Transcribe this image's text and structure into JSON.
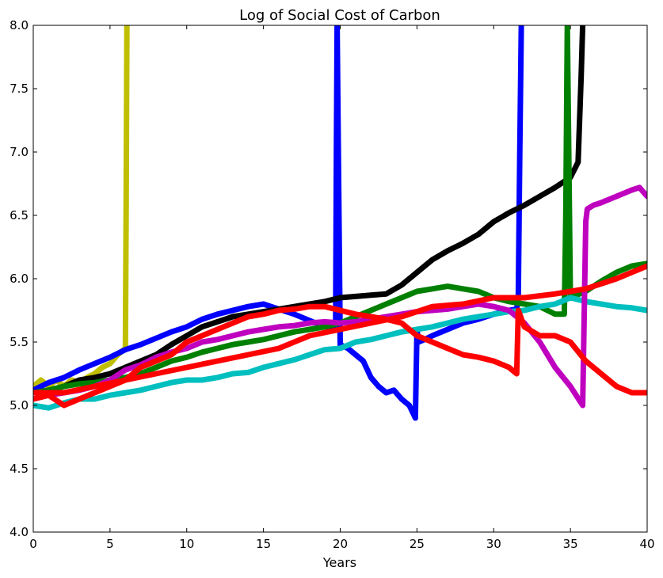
{
  "chart_data": {
    "type": "line",
    "title": "Log of Social Cost of Carbon",
    "xlabel": "Years",
    "ylabel": "",
    "xlim": [
      0,
      40
    ],
    "ylim": [
      4.0,
      8.0
    ],
    "grid": false,
    "legend": "none",
    "x_ticks": [
      0,
      5,
      10,
      15,
      20,
      25,
      30,
      35,
      40
    ],
    "y_ticks": [
      4.0,
      4.5,
      5.0,
      5.5,
      6.0,
      6.5,
      7.0,
      7.5,
      8.0
    ],
    "x_tick_labels": [
      "0",
      "5",
      "10",
      "15",
      "20",
      "25",
      "30",
      "35",
      "40"
    ],
    "y_tick_labels": [
      "4.0",
      "4.5",
      "5.0",
      "5.5",
      "6.0",
      "6.5",
      "7.0",
      "7.5",
      "8.0"
    ],
    "series": [
      {
        "color": "#bfbf00",
        "x": [
          0,
          0.5,
          1,
          1.5,
          2,
          2.5,
          3,
          3.5,
          4,
          4.5,
          5,
          5.5,
          6,
          6.05,
          6.1
        ],
        "y": [
          5.15,
          5.2,
          5.15,
          5.2,
          5.15,
          5.2,
          5.18,
          5.22,
          5.25,
          5.3,
          5.33,
          5.4,
          5.45,
          6.5,
          8.0
        ]
      },
      {
        "color": "#0000ff",
        "x": [
          0,
          1,
          2,
          3,
          4,
          5,
          6,
          7,
          8,
          9,
          10,
          11,
          12,
          13,
          14,
          15,
          16,
          17,
          18,
          19,
          19.7,
          19.75,
          19.8,
          20,
          20.5,
          21,
          21.5,
          22,
          22.5,
          23,
          23.5,
          24,
          24.5,
          24.9,
          25,
          25.1,
          25.5,
          26,
          27,
          28,
          29,
          30,
          31,
          31.5,
          31.6,
          31.7,
          31.8
        ],
        "y": [
          5.12,
          5.18,
          5.22,
          5.28,
          5.33,
          5.38,
          5.44,
          5.48,
          5.53,
          5.58,
          5.62,
          5.68,
          5.72,
          5.75,
          5.78,
          5.8,
          5.76,
          5.72,
          5.67,
          5.62,
          5.62,
          7.0,
          8.0,
          5.48,
          5.45,
          5.4,
          5.35,
          5.22,
          5.15,
          5.1,
          5.12,
          5.05,
          5.0,
          4.9,
          5.6,
          5.5,
          5.52,
          5.55,
          5.6,
          5.65,
          5.68,
          5.72,
          5.75,
          5.76,
          5.85,
          7.0,
          8.0
        ]
      },
      {
        "color": "#000000",
        "x": [
          0,
          1,
          2,
          3,
          4,
          5,
          6,
          7,
          8,
          9,
          10,
          11,
          12,
          13,
          14,
          15,
          16,
          17,
          18,
          19,
          20,
          21,
          22,
          23,
          24,
          25,
          26,
          27,
          28,
          29,
          30,
          31,
          32,
          33,
          34,
          35,
          35.5,
          35.7,
          35.8
        ],
        "y": [
          5.1,
          5.12,
          5.15,
          5.2,
          5.22,
          5.25,
          5.3,
          5.35,
          5.4,
          5.48,
          5.55,
          5.62,
          5.66,
          5.7,
          5.72,
          5.74,
          5.76,
          5.78,
          5.8,
          5.82,
          5.85,
          5.86,
          5.87,
          5.88,
          5.95,
          6.05,
          6.15,
          6.22,
          6.28,
          6.35,
          6.45,
          6.52,
          6.58,
          6.65,
          6.72,
          6.8,
          6.92,
          7.6,
          8.0
        ]
      },
      {
        "color": "#008000",
        "x": [
          0,
          1,
          2,
          3,
          4,
          5,
          6,
          7,
          8,
          9,
          10,
          11,
          12,
          13,
          14,
          15,
          16,
          17,
          18,
          19,
          20,
          21,
          22,
          23,
          24,
          25,
          26,
          27,
          28,
          29,
          30,
          31,
          32,
          33,
          34,
          34.6,
          34.7,
          34.8,
          35,
          36,
          37,
          38,
          39,
          40
        ],
        "y": [
          5.1,
          5.12,
          5.15,
          5.17,
          5.18,
          5.2,
          5.22,
          5.25,
          5.3,
          5.35,
          5.38,
          5.42,
          5.45,
          5.48,
          5.5,
          5.52,
          5.55,
          5.58,
          5.6,
          5.62,
          5.65,
          5.7,
          5.75,
          5.8,
          5.85,
          5.9,
          5.92,
          5.94,
          5.92,
          5.9,
          5.85,
          5.82,
          5.8,
          5.78,
          5.72,
          5.72,
          6.5,
          8.0,
          5.85,
          5.9,
          5.98,
          6.05,
          6.1,
          6.12
        ]
      },
      {
        "color": "#00bfbf",
        "x": [
          0,
          1,
          2,
          3,
          4,
          5,
          6,
          7,
          8,
          9,
          10,
          11,
          12,
          13,
          14,
          15,
          16,
          17,
          18,
          19,
          20,
          21,
          22,
          23,
          24,
          25,
          26,
          27,
          28,
          29,
          30,
          31,
          32,
          33,
          34,
          35,
          36,
          37,
          38,
          39,
          40
        ],
        "y": [
          5.0,
          4.98,
          5.02,
          5.05,
          5.05,
          5.08,
          5.1,
          5.12,
          5.15,
          5.18,
          5.2,
          5.2,
          5.22,
          5.25,
          5.26,
          5.3,
          5.33,
          5.36,
          5.4,
          5.44,
          5.45,
          5.5,
          5.52,
          5.55,
          5.58,
          5.6,
          5.62,
          5.65,
          5.68,
          5.7,
          5.72,
          5.74,
          5.75,
          5.78,
          5.8,
          5.85,
          5.82,
          5.8,
          5.78,
          5.77,
          5.75
        ]
      },
      {
        "color": "#bf00bf",
        "x": [
          0,
          1,
          2,
          3,
          4,
          5,
          6,
          7,
          8,
          9,
          10,
          11,
          12,
          13,
          14,
          15,
          16,
          17,
          18,
          19,
          20,
          21,
          22,
          23,
          24,
          25,
          26,
          27,
          28,
          29,
          30,
          31,
          32,
          33,
          34,
          35,
          35.8,
          36,
          36.1,
          36.5,
          37,
          38,
          39,
          39.5,
          40
        ],
        "y": [
          5.05,
          5.08,
          5.1,
          5.12,
          5.15,
          5.2,
          5.28,
          5.32,
          5.38,
          5.42,
          5.45,
          5.5,
          5.52,
          5.55,
          5.58,
          5.6,
          5.62,
          5.63,
          5.65,
          5.66,
          5.65,
          5.66,
          5.68,
          5.7,
          5.72,
          5.74,
          5.75,
          5.76,
          5.78,
          5.8,
          5.78,
          5.75,
          5.65,
          5.5,
          5.3,
          5.15,
          5.0,
          6.45,
          6.55,
          6.58,
          6.6,
          6.65,
          6.7,
          6.72,
          6.65
        ]
      },
      {
        "color": "#ff0000",
        "x": [
          0,
          1,
          2,
          3,
          4,
          5,
          6,
          7,
          8,
          9,
          10,
          11,
          12,
          13,
          14,
          15,
          16,
          17,
          18,
          19,
          20,
          21,
          22,
          23,
          24,
          25,
          26,
          27,
          28,
          29,
          30,
          31,
          31.5,
          31.6,
          32,
          33,
          34,
          35,
          36,
          37,
          38,
          39,
          40
        ],
        "y": [
          5.05,
          5.08,
          5.0,
          5.05,
          5.1,
          5.15,
          5.2,
          5.3,
          5.35,
          5.4,
          5.5,
          5.55,
          5.6,
          5.65,
          5.7,
          5.72,
          5.75,
          5.76,
          5.78,
          5.78,
          5.75,
          5.72,
          5.7,
          5.68,
          5.65,
          5.55,
          5.5,
          5.45,
          5.4,
          5.38,
          5.35,
          5.3,
          5.25,
          5.75,
          5.62,
          5.55,
          5.55,
          5.5,
          5.35,
          5.25,
          5.15,
          5.1,
          5.1
        ]
      },
      {
        "color": "#ff0000",
        "x": [
          0,
          2,
          4,
          6,
          8,
          10,
          12,
          14,
          16,
          18,
          20,
          22,
          24,
          26,
          28,
          30,
          32,
          34,
          36,
          38,
          40
        ],
        "y": [
          5.1,
          5.1,
          5.15,
          5.2,
          5.25,
          5.3,
          5.35,
          5.4,
          5.45,
          5.55,
          5.6,
          5.65,
          5.7,
          5.78,
          5.8,
          5.85,
          5.85,
          5.88,
          5.92,
          6.0,
          6.1
        ]
      }
    ]
  }
}
